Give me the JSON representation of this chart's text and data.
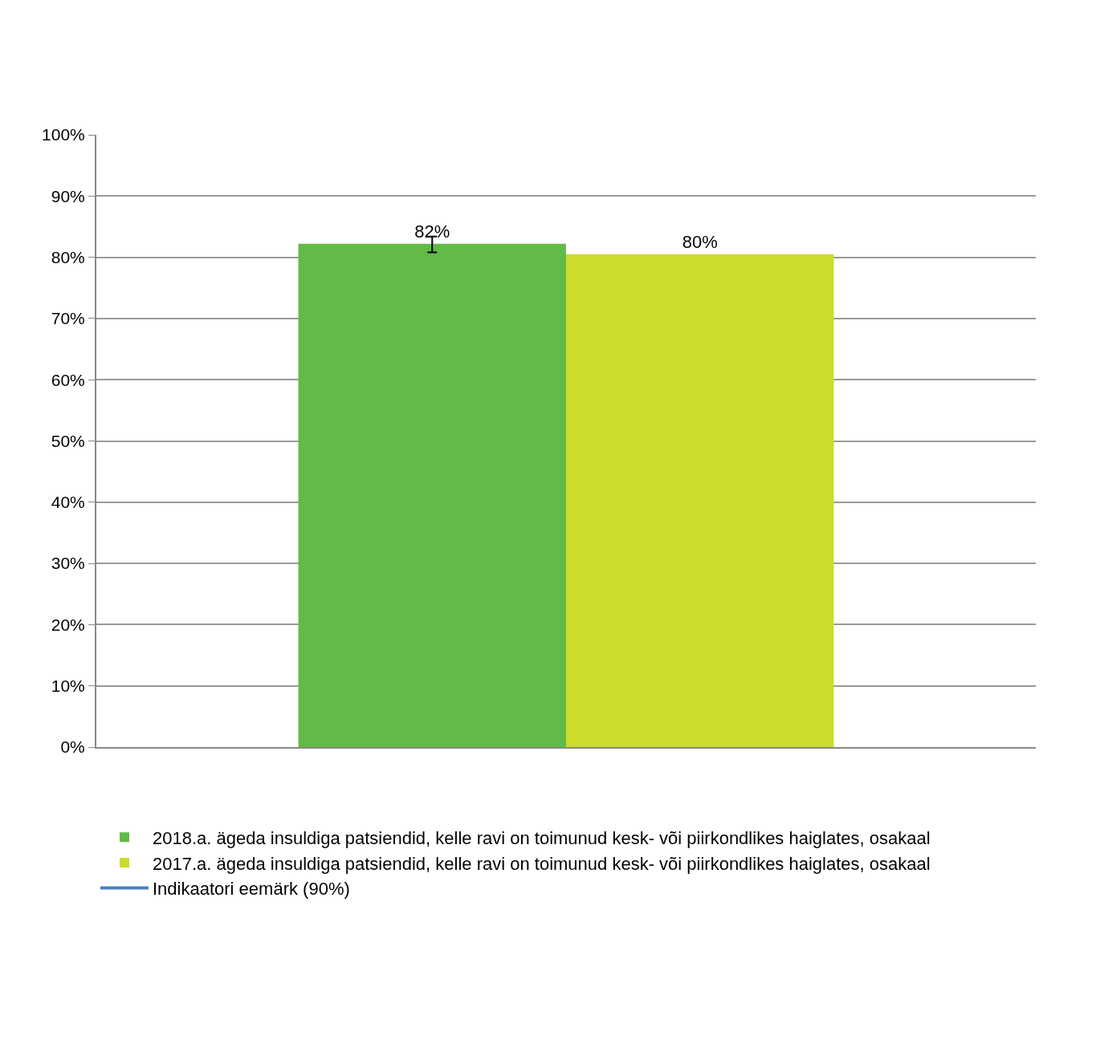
{
  "chart_data": {
    "type": "bar",
    "categories": [
      null
    ],
    "series": [
      {
        "name": "2018.a. ägeda insuldiga patsiendid, kelle ravi on toimunud kesk- või piirkondlikes haiglates, osakaal",
        "color": "#62bb46",
        "values": [
          82.2
        ],
        "value_labels": [
          "82%"
        ],
        "errors": [
          [
            80.8,
            83.4
          ]
        ]
      },
      {
        "name": "2017.a. ägeda insuldiga patsiendid, kelle ravi on toimunud kesk- või piirkondlikes haiglates, osakaal",
        "color": "#cbdc2c",
        "values": [
          80.5
        ],
        "value_labels": [
          "80%"
        ]
      },
      {
        "name": "Indikaatori eemärk (90%)",
        "type": "line",
        "color": "#4f81bd",
        "values": [
          null
        ]
      }
    ],
    "ylim": [
      0,
      100
    ],
    "yticks": [
      {
        "value": 0,
        "label": "0%"
      },
      {
        "value": 10,
        "label": "10%"
      },
      {
        "value": 20,
        "label": "20%"
      },
      {
        "value": 30,
        "label": "30%"
      },
      {
        "value": 40,
        "label": "40%"
      },
      {
        "value": 50,
        "label": "50%"
      },
      {
        "value": 60,
        "label": "60%"
      },
      {
        "value": 70,
        "label": "70%"
      },
      {
        "value": 80,
        "label": "80%"
      },
      {
        "value": 90,
        "label": "90%"
      },
      {
        "value": 100,
        "label": "100%"
      }
    ],
    "grid": "y",
    "legend": "bottom"
  }
}
